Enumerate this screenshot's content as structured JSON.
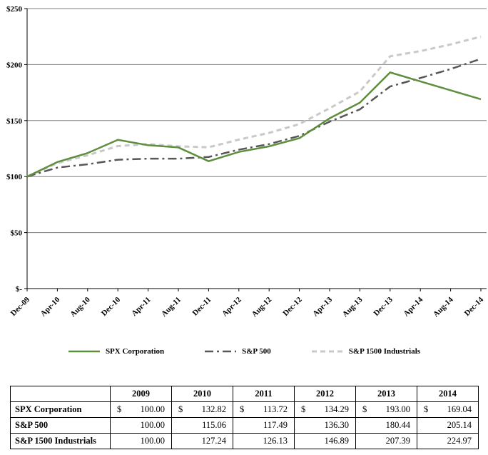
{
  "chart_data": {
    "type": "line",
    "title": "",
    "xlabel": "",
    "ylabel": "",
    "ylim": [
      0,
      250
    ],
    "y_ticks": [
      0,
      50,
      100,
      150,
      200,
      250
    ],
    "y_tick_labels": [
      "$-",
      "$50",
      "$100",
      "$150",
      "$200",
      "$250"
    ],
    "grid": "horizontal",
    "legend_position": "bottom",
    "x_tick_labels": [
      "Dec-09",
      "Apr-10",
      "Aug-10",
      "Dec-10",
      "Apr-11",
      "Aug-11",
      "Dec-11",
      "Apr-12",
      "Aug-12",
      "Dec-12",
      "Apr-13",
      "Aug-13",
      "Dec-13",
      "Apr-14",
      "Aug-14",
      "Dec-14"
    ],
    "series": [
      {
        "name": "SPX Corporation",
        "color": "#5e8e3e",
        "dash": "solid",
        "values": [
          100,
          113,
          121,
          132.82,
          128,
          126,
          113.72,
          122,
          127,
          134.29,
          152,
          166,
          193.0,
          185,
          177,
          169.04
        ]
      },
      {
        "name": "S&P 500",
        "color": "#575757",
        "dash": "dashdot",
        "values": [
          100,
          108,
          111,
          115.06,
          116,
          116,
          117.49,
          124,
          129,
          136.3,
          149,
          160,
          180.44,
          188,
          196,
          205.14
        ]
      },
      {
        "name": "S&P 1500 Industrials",
        "color": "#c9c9c9",
        "dash": "dashed",
        "values": [
          100,
          112,
          119,
          127.24,
          129,
          127,
          126.13,
          133,
          139,
          146.89,
          161,
          176,
          207.39,
          212,
          218,
          224.97
        ]
      }
    ]
  },
  "legend": {
    "items": [
      {
        "label": "SPX Corporation",
        "color": "#5e8e3e",
        "dash": "solid"
      },
      {
        "label": "S&P 500",
        "color": "#575757",
        "dash": "dashdot"
      },
      {
        "label": "S&P 1500 Industrials",
        "color": "#c9c9c9",
        "dash": "dashed"
      }
    ]
  },
  "table": {
    "currency_symbol": "$",
    "header": [
      "",
      "2009",
      "2010",
      "2011",
      "2012",
      "2013",
      "2014"
    ],
    "rows": [
      {
        "label": "SPX Corporation",
        "dollar": true,
        "values": [
          "100.00",
          "132.82",
          "113.72",
          "134.29",
          "193.00",
          "169.04"
        ]
      },
      {
        "label": "S&P 500",
        "dollar": false,
        "values": [
          "100.00",
          "115.06",
          "117.49",
          "136.30",
          "180.44",
          "205.14"
        ]
      },
      {
        "label": "S&P 1500 Industrials",
        "dollar": false,
        "values": [
          "100.00",
          "127.24",
          "126.13",
          "146.89",
          "207.39",
          "224.97"
        ]
      }
    ]
  }
}
